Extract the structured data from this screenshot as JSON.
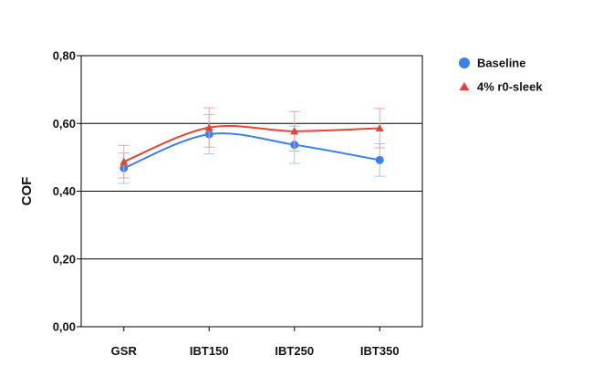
{
  "chart_data": {
    "type": "line",
    "title": "",
    "xlabel": "",
    "ylabel": "COF",
    "categories": [
      "GSR",
      "IBT150",
      "IBT250",
      "IBT350"
    ],
    "ylim": [
      0,
      0.8
    ],
    "yticks": [
      0,
      0.2,
      0.4,
      0.6,
      0.8
    ],
    "ytick_labels": [
      "0,00",
      "0,20",
      "0,40",
      "0,60",
      "0,80"
    ],
    "grid": "horizontal",
    "legend_position": "right",
    "series": [
      {
        "name": "Baseline",
        "marker": "circle",
        "color": "#3f80e8",
        "error_color": "#a9c4ee",
        "values": [
          0.468,
          0.568,
          0.537,
          0.492
        ],
        "error": [
          0.045,
          0.058,
          0.055,
          0.048
        ]
      },
      {
        "name": "4% r0-sleek",
        "marker": "triangle",
        "color": "#e14535",
        "error_color": "#eea3a3",
        "values": [
          0.487,
          0.588,
          0.577,
          0.586
        ],
        "error": [
          0.048,
          0.058,
          0.058,
          0.058
        ]
      }
    ]
  }
}
